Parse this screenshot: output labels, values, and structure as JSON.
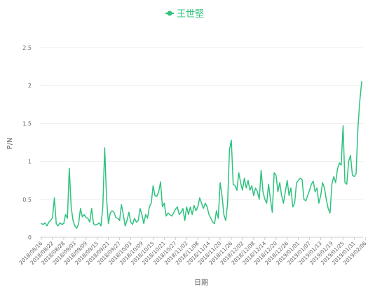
{
  "chart_data": {
    "type": "line",
    "title": "",
    "legend": {
      "position": "top-center",
      "items": [
        {
          "name": "王世堅",
          "color": "#2ec27e"
        }
      ]
    },
    "xlabel": "日期",
    "ylabel": "P/N",
    "ylim": [
      0,
      2.5
    ],
    "yticks": [
      "0",
      "0.5",
      "1",
      "1.5",
      "2",
      "2.5"
    ],
    "grid": {
      "horizontal": true,
      "vertical": false
    },
    "x_tick_labels": [
      "2018/08/16",
      "2018/08/22",
      "2018/08/28",
      "2018/09/03",
      "2018/09/09",
      "2018/09/15",
      "2018/09/21",
      "2018/09/27",
      "2018/10/03",
      "2018/10/09",
      "2018/10/15",
      "2018/10/21",
      "2018/10/27",
      "2018/11/02",
      "2018/11/08",
      "2018/11/14",
      "2018/11/20",
      "2018/11/26",
      "2018/12/02",
      "2018/12/08",
      "2018/12/14",
      "2018/12/20",
      "2018/12/26",
      "2019/01/01",
      "2019/01/07",
      "2019/01/13",
      "2019/01/19",
      "2019/01/25",
      "2019/01/31",
      "2019/02/06"
    ],
    "series": [
      {
        "name": "王世堅",
        "color": "#2ec27e",
        "values": [
          0.18,
          0.17,
          0.19,
          0.15,
          0.2,
          0.22,
          0.26,
          0.52,
          0.18,
          0.15,
          0.19,
          0.17,
          0.18,
          0.3,
          0.25,
          0.91,
          0.4,
          0.22,
          0.15,
          0.12,
          0.18,
          0.38,
          0.27,
          0.3,
          0.26,
          0.25,
          0.2,
          0.38,
          0.18,
          0.16,
          0.17,
          0.19,
          0.15,
          0.4,
          1.18,
          0.52,
          0.18,
          0.32,
          0.35,
          0.33,
          0.26,
          0.25,
          0.22,
          0.43,
          0.3,
          0.15,
          0.22,
          0.33,
          0.2,
          0.17,
          0.25,
          0.2,
          0.22,
          0.38,
          0.3,
          0.18,
          0.3,
          0.25,
          0.4,
          0.45,
          0.68,
          0.55,
          0.54,
          0.6,
          0.73,
          0.4,
          0.45,
          0.28,
          0.32,
          0.3,
          0.28,
          0.32,
          0.37,
          0.4,
          0.3,
          0.33,
          0.38,
          0.22,
          0.4,
          0.3,
          0.4,
          0.3,
          0.42,
          0.35,
          0.4,
          0.52,
          0.45,
          0.38,
          0.45,
          0.4,
          0.3,
          0.25,
          0.2,
          0.18,
          0.35,
          0.25,
          0.72,
          0.55,
          0.3,
          0.22,
          0.45,
          1.15,
          1.28,
          0.7,
          0.68,
          0.62,
          0.85,
          0.72,
          0.62,
          0.78,
          0.65,
          0.75,
          0.62,
          0.68,
          0.55,
          0.65,
          0.6,
          0.5,
          0.88,
          0.6,
          0.5,
          0.45,
          0.7,
          0.5,
          0.33,
          0.85,
          0.82,
          0.6,
          0.72,
          0.55,
          0.45,
          0.6,
          0.75,
          0.55,
          0.65,
          0.4,
          0.45,
          0.72,
          0.75,
          0.78,
          0.76,
          0.5,
          0.48,
          0.55,
          0.62,
          0.7,
          0.74,
          0.6,
          0.65,
          0.45,
          0.55,
          0.72,
          0.65,
          0.5,
          0.38,
          0.32,
          0.7,
          0.8,
          0.72,
          0.9,
          0.98,
          0.95,
          1.47,
          0.72,
          0.7,
          1.0,
          1.08,
          0.82,
          0.8,
          0.84,
          1.45,
          1.8,
          2.05
        ]
      }
    ]
  }
}
